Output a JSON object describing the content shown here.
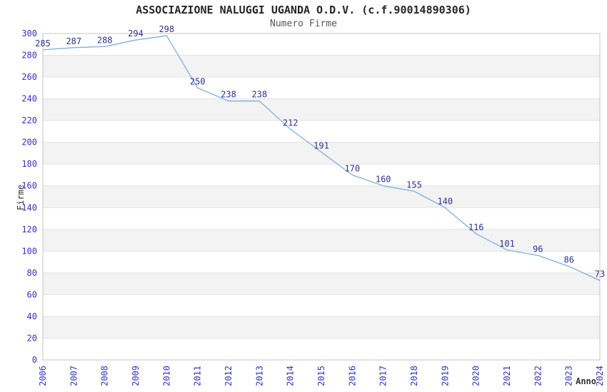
{
  "header": {
    "title": "ASSOCIAZIONE NALUGGI UGANDA O.D.V. (c.f.90014890306)",
    "subtitle": "Numero Firme"
  },
  "axes": {
    "xlabel": "Anno",
    "ylabel": "Firme"
  },
  "chart_data": {
    "type": "line",
    "title": "ASSOCIAZIONE NALUGGI UGANDA O.D.V. (c.f.90014890306)",
    "subtitle": "Numero Firme",
    "xlabel": "Anno",
    "ylabel": "Firme",
    "x": [
      "2006",
      "2007",
      "2008",
      "2009",
      "2010",
      "2011",
      "2012",
      "2013",
      "2014",
      "2015",
      "2016",
      "2017",
      "2018",
      "2019",
      "2020",
      "2021",
      "2022",
      "2023",
      "2024"
    ],
    "series": [
      {
        "name": "Numero Firme",
        "values": [
          285,
          287,
          288,
          294,
          298,
          250,
          238,
          238,
          212,
          191,
          170,
          160,
          155,
          140,
          116,
          101,
          96,
          86,
          73
        ]
      }
    ],
    "ylim": [
      0,
      300
    ],
    "ytick_step": 20,
    "grid": true,
    "alternating_bands": true,
    "legend_position": "none",
    "data_labels": true,
    "colors": {
      "line": "#7eafe3",
      "tick_label": "#3333cc",
      "data_label": "#2e3192",
      "band": "#f3f3f3",
      "grid": "#e3e3e3",
      "border": "#c4c4c4",
      "title": "#262626",
      "subtitle": "#595959",
      "axis_title": "#333333"
    }
  }
}
